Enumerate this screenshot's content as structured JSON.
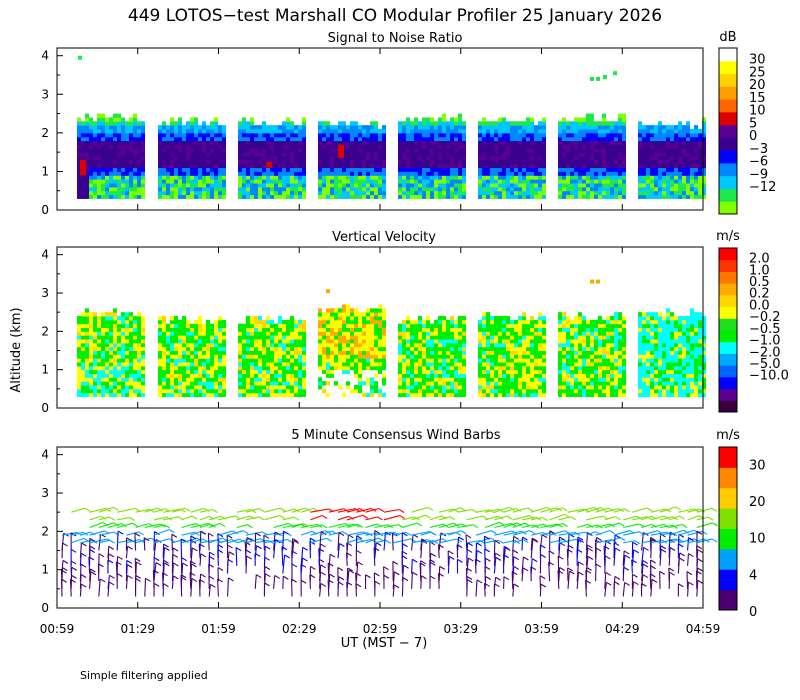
{
  "header": {
    "title": "449 LOTOS−test Marshall CO Modular Profiler 25 January 2026"
  },
  "axes": {
    "ylabel": "Altitude (km)",
    "xlabel": "UT  (MST − 7)",
    "yticks": [
      "0",
      "1",
      "2",
      "3",
      "4"
    ],
    "xticks": [
      "00:59",
      "01:29",
      "01:59",
      "02:29",
      "02:59",
      "03:29",
      "03:59",
      "04:29",
      "04:59"
    ]
  },
  "footer": {
    "note": "Simple filtering applied"
  },
  "colors": {
    "snr": [
      "#7fff00",
      "#1fe84a",
      "#00c8ff",
      "#0087ff",
      "#0000ff",
      "#3a0090",
      "#5a0090",
      "#dd0000",
      "#ff6600",
      "#ff9c00",
      "#ffd200",
      "#ffff00",
      "#ffffff"
    ],
    "vv": [
      "#380040",
      "#5a0090",
      "#0000ff",
      "#0066ff",
      "#00aaff",
      "#00ffff",
      "#00ee00",
      "#20e020",
      "#ffff00",
      "#ffd800",
      "#ffaa00",
      "#ff7700",
      "#ff3300",
      "#ff0000"
    ],
    "wind": [
      "#4a0070",
      "#0000ff",
      "#00a0ff",
      "#00ee00",
      "#80e000",
      "#ffcc00",
      "#ff8800",
      "#ff0000"
    ]
  },
  "panels": [
    {
      "title": "Signal to Noise Ratio",
      "unit": "dB",
      "colorbar_labels": [
        "30",
        "25",
        "20",
        "15",
        "10",
        "5",
        "0",
        "−3",
        "−6",
        "−9",
        "−12"
      ]
    },
    {
      "title": "Vertical Velocity",
      "unit": "m/s",
      "colorbar_labels": [
        "2.0",
        "1.0",
        "0.5",
        "0.2",
        "0.0",
        "−0.2",
        "−0.5",
        "−1.0",
        "−2.0",
        "−5.0",
        "−10.0"
      ]
    },
    {
      "title": "5 Minute Consensus Wind Barbs",
      "unit": "m/s",
      "colorbar_labels": [
        "30",
        "20",
        "10",
        "4",
        "0"
      ]
    }
  ],
  "chart_data": [
    {
      "type": "heatmap",
      "title": "Signal to Noise Ratio",
      "units": "dB",
      "xlabel": "UT  (MST − 7)",
      "ylabel": "Altitude (km)",
      "xlim": [
        "00:59",
        "04:59"
      ],
      "ylim": [
        0,
        4
      ],
      "colorbar_levels_db": [
        -12,
        -9,
        -6,
        -3,
        0,
        5,
        10,
        15,
        20,
        25,
        30
      ],
      "data_blocks_ut": [
        [
          "01:00",
          "01:18"
        ],
        [
          "01:30",
          "01:50"
        ],
        [
          "02:00",
          "02:20"
        ],
        [
          "02:30",
          "02:50"
        ],
        [
          "03:00",
          "03:20"
        ],
        [
          "03:30",
          "03:50"
        ],
        [
          "04:00",
          "04:20"
        ],
        [
          "04:30",
          "04:50"
        ]
      ],
      "data_range_km": [
        0.3,
        2.6
      ]
    },
    {
      "type": "heatmap",
      "title": "Vertical Velocity",
      "units": "m/s",
      "xlabel": "UT  (MST − 7)",
      "ylabel": "Altitude (km)",
      "xlim": [
        "00:59",
        "04:59"
      ],
      "ylim": [
        0,
        4
      ],
      "colorbar_levels_ms": [
        -10.0,
        -5.0,
        -2.0,
        -1.0,
        -0.5,
        -0.2,
        0.0,
        0.2,
        0.5,
        1.0,
        2.0
      ],
      "data_range_km": [
        0.3,
        2.6
      ]
    },
    {
      "type": "scatter",
      "subtype": "wind_barbs",
      "title": "5 Minute Consensus Wind Barbs",
      "units": "m/s",
      "xlabel": "UT  (MST − 7)",
      "ylabel": "Altitude (km)",
      "xlim": [
        "00:59",
        "04:59"
      ],
      "ylim": [
        0,
        4
      ],
      "colorbar_levels_ms": [
        0,
        4,
        10,
        20,
        30
      ],
      "data_range_km": [
        0.3,
        2.9
      ]
    }
  ]
}
